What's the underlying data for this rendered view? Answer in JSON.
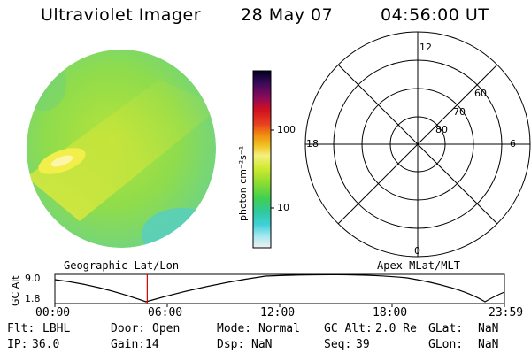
{
  "header": {
    "instrument": "Ultraviolet Imager",
    "date": "28 May 07",
    "time": "04:56:00 UT"
  },
  "colorbar": {
    "unit_label": "photon cm⁻²s⁻¹",
    "ticks": [
      "100",
      "10"
    ]
  },
  "polar_plot": {
    "mlt_labels": {
      "top": "12",
      "left": "18",
      "right": "6",
      "bottom": "0"
    },
    "lat_labels": [
      "60",
      "70",
      "80"
    ]
  },
  "timeline": {
    "left_label": "Geographic Lat/Lon",
    "right_label": "Apex MLat/MLT",
    "axis_title": "GC Alt",
    "y_ticks": [
      "9.0",
      "1.8"
    ],
    "x_ticks": [
      "00:00",
      "06:00",
      "12:00",
      "18:00",
      "23:59"
    ],
    "marker_time_hours": 4.93,
    "marker_color": "#d00000"
  },
  "status": {
    "row1": [
      {
        "k": "Flt:",
        "v": "LBHL"
      },
      {
        "k": "Door:",
        "v": "Open"
      },
      {
        "k": "Mode:",
        "v": "Normal"
      },
      {
        "k": "GC Alt:",
        "v": "2.0 Re"
      },
      {
        "k": "GLat:",
        "v": "NaN"
      }
    ],
    "row2": [
      {
        "k": "IP:",
        "v": "36.0"
      },
      {
        "k": "Gain:",
        "v": "14"
      },
      {
        "k": "Dsp:",
        "v": "NaN"
      },
      {
        "k": "Seq:",
        "v": "39"
      },
      {
        "k": "GLon:",
        "v": "NaN"
      }
    ]
  }
}
